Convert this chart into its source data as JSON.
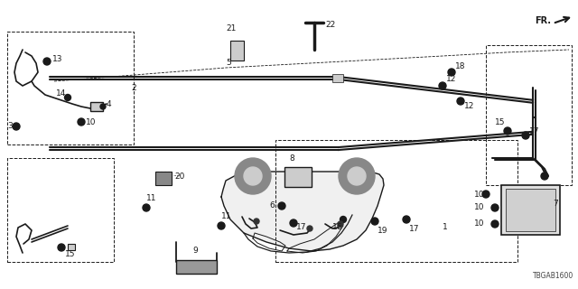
{
  "bg_color": "#ffffff",
  "line_color": "#1a1a1a",
  "diagram_code": "TBGAB1600",
  "fig_width": 6.4,
  "fig_height": 3.2,
  "dpi": 100
}
